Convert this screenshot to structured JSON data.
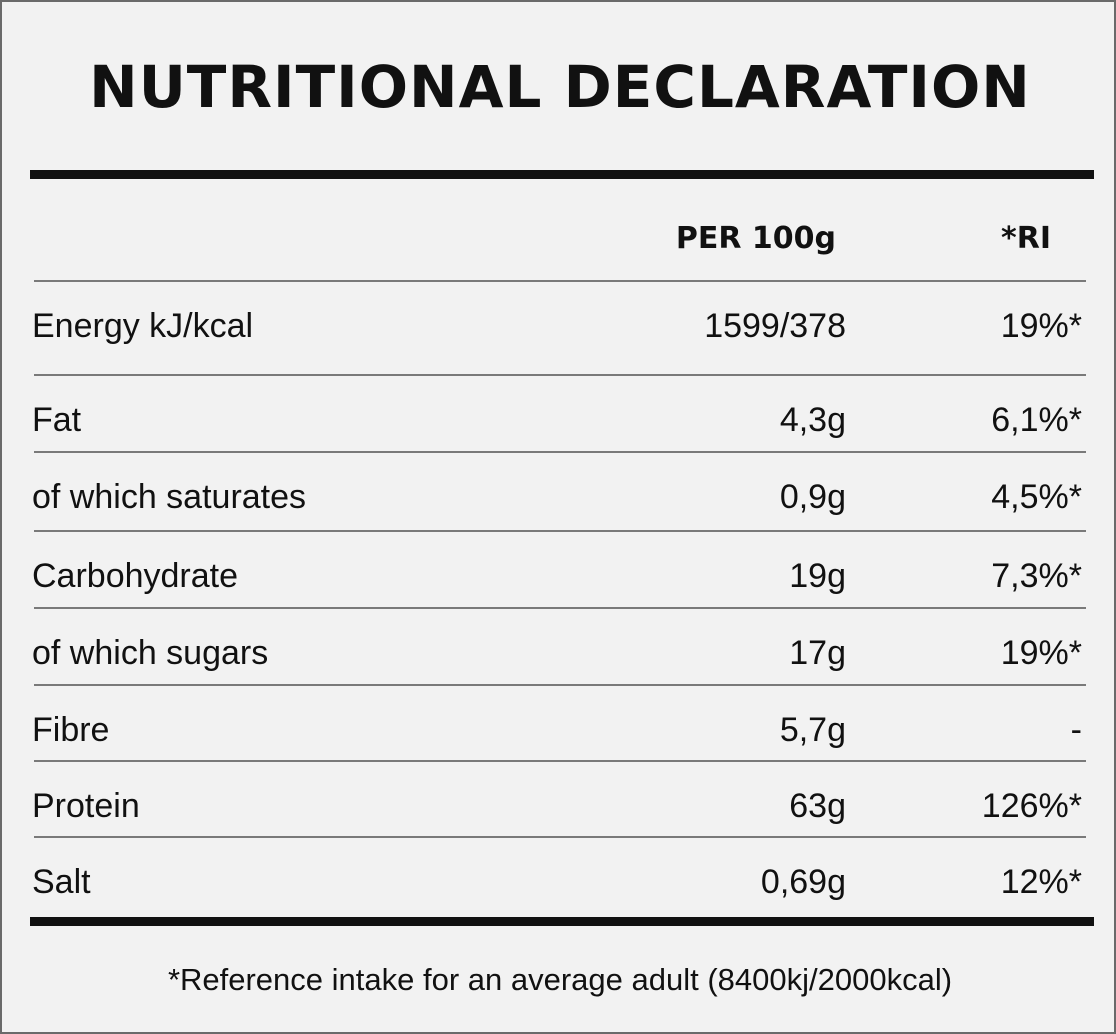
{
  "title": "NUTRITIONAL DECLARATION",
  "columns": {
    "per100": "PER 100g",
    "ri": "*RI"
  },
  "rows": [
    {
      "label": "Energy kJ/kcal",
      "per100": "1599/378",
      "ri": "19%*"
    },
    {
      "label": "Fat",
      "per100": "4,3g",
      "ri": "6,1%*"
    },
    {
      "label": "of which saturates",
      "per100": "0,9g",
      "ri": "4,5%*"
    },
    {
      "label": "Carbohydrate",
      "per100": "19g",
      "ri": "7,3%*"
    },
    {
      "label": "of which sugars",
      "per100": "17g",
      "ri": "19%*"
    },
    {
      "label": "Fibre",
      "per100": "5,7g",
      "ri": "-"
    },
    {
      "label": "Protein",
      "per100": "63g",
      "ri": "126%*"
    },
    {
      "label": "Salt",
      "per100": "0,69g",
      "ri": "12%*"
    }
  ],
  "footnote": "*Reference intake for an average adult (8400kj/2000kcal)"
}
